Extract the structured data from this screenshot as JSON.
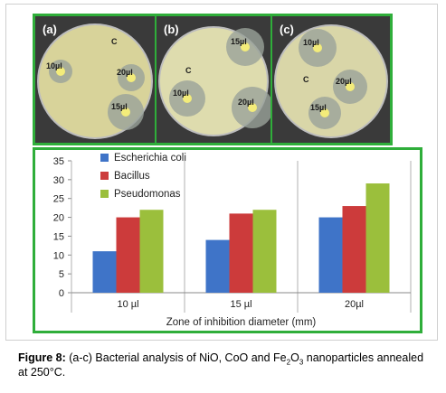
{
  "panels": [
    {
      "label": "(a)",
      "dish_color": "#d8d39a",
      "wells": [
        {
          "text": "C",
          "x": 74,
          "y": 28,
          "zone": 0
        },
        {
          "text": "10µl",
          "x": 12,
          "y": 55,
          "zone": 13
        },
        {
          "text": "20µl",
          "x": 90,
          "y": 62,
          "zone": 15
        },
        {
          "text": "15µl",
          "x": 84,
          "y": 100,
          "zone": 20
        }
      ]
    },
    {
      "label": "(b)",
      "dish_color": "#dedcae",
      "wells": [
        {
          "text": "15µl",
          "x": 82,
          "y": 28,
          "zone": 21
        },
        {
          "text": "C",
          "x": 22,
          "y": 60,
          "zone": 0
        },
        {
          "text": "10µl",
          "x": 18,
          "y": 85,
          "zone": 20
        },
        {
          "text": "20µl",
          "x": 90,
          "y": 95,
          "zone": 23
        }
      ]
    },
    {
      "label": "(c)",
      "dish_color": "#d9d6a8",
      "wells": [
        {
          "text": "10µl",
          "x": 34,
          "y": 29,
          "zone": 21
        },
        {
          "text": "C",
          "x": 24,
          "y": 70,
          "zone": 0
        },
        {
          "text": "20µl",
          "x": 70,
          "y": 72,
          "zone": 19
        },
        {
          "text": "15µl",
          "x": 42,
          "y": 101,
          "zone": 18
        }
      ]
    }
  ],
  "chart_data": {
    "type": "bar",
    "categories": [
      "10 µl",
      "15 µl",
      "20µl"
    ],
    "series": [
      {
        "name": "Escherichia coli",
        "color": "#3f74c8",
        "values": [
          11,
          14,
          20
        ]
      },
      {
        "name": "Bacillus",
        "color": "#cc3b3b",
        "values": [
          20,
          21,
          23
        ]
      },
      {
        "name": "Pseudomonas",
        "color": "#9bbf3c",
        "values": [
          22,
          22,
          29
        ]
      }
    ],
    "ylim": [
      0,
      35
    ],
    "yticks": [
      0,
      5,
      10,
      15,
      20,
      25,
      30,
      35
    ],
    "xlabel": "Zone of inhibition diameter (mm)",
    "ylabel": "",
    "title": "",
    "grid": "vertical",
    "legend": "top-left"
  },
  "caption": {
    "fig_label": "Figure 8:",
    "text_before_sub1": " (a-c) Bacterial analysis of NiO, CoO and Fe",
    "sub1": "2",
    "text_mid": "O",
    "sub2": "3",
    "text_after": " nanoparticles annealed at 250°C."
  }
}
